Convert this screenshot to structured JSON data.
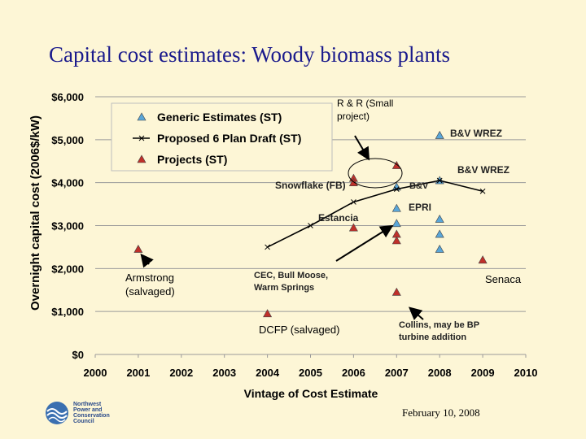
{
  "slide": {
    "title": "Capital cost estimates: Woody biomass plants",
    "date": "February 10, 2008",
    "logo_text": [
      "Northwest",
      "Power and",
      "Conservation",
      "Council"
    ]
  },
  "chart_data": {
    "type": "scatter",
    "xlabel": "Vintage of Cost Estimate",
    "ylabel": "Overnight capital cost (2006$/kW)",
    "xlim": [
      2000,
      2010
    ],
    "ylim": [
      0,
      6000
    ],
    "x_ticks": [
      "2000",
      "2001",
      "2002",
      "2003",
      "2004",
      "2005",
      "2006",
      "2007",
      "2008",
      "2009",
      "2010"
    ],
    "y_ticks": [
      "$0",
      "$1,000",
      "$2,000",
      "$3,000",
      "$4,000",
      "$5,000",
      "$6,000"
    ],
    "y_tick_values": [
      0,
      1000,
      2000,
      3000,
      4000,
      5000,
      6000
    ],
    "grid": "horizontal",
    "legend_position": "top-left",
    "series": [
      {
        "name": "Generic Estimates (ST)",
        "marker": "triangle",
        "color": "#5aa6d8",
        "points": [
          {
            "x": 2007,
            "y": 3900
          },
          {
            "x": 2007,
            "y": 3400
          },
          {
            "x": 2007,
            "y": 3050
          },
          {
            "x": 2008,
            "y": 5100
          },
          {
            "x": 2008,
            "y": 4050
          },
          {
            "x": 2008,
            "y": 3150
          },
          {
            "x": 2008,
            "y": 2800
          },
          {
            "x": 2008,
            "y": 2450
          }
        ]
      },
      {
        "name": "Proposed 6 Plan Draft (ST)",
        "marker": "x-line",
        "color": "#000000",
        "points": [
          {
            "x": 2004,
            "y": 2500
          },
          {
            "x": 2005,
            "y": 3000
          },
          {
            "x": 2006,
            "y": 3550
          },
          {
            "x": 2007,
            "y": 3850
          },
          {
            "x": 2008,
            "y": 4050
          },
          {
            "x": 2009,
            "y": 3800
          }
        ]
      },
      {
        "name": "Projects (ST)",
        "marker": "triangle",
        "color": "#c0302a",
        "points": [
          {
            "x": 2001,
            "y": 2450
          },
          {
            "x": 2004,
            "y": 950
          },
          {
            "x": 2006,
            "y": 4100
          },
          {
            "x": 2006,
            "y": 4000
          },
          {
            "x": 2006,
            "y": 2950
          },
          {
            "x": 2007,
            "y": 4400
          },
          {
            "x": 2007,
            "y": 2800
          },
          {
            "x": 2007,
            "y": 2650
          },
          {
            "x": 2007,
            "y": 1450
          },
          {
            "x": 2009,
            "y": 2200
          }
        ]
      }
    ],
    "annotations": [
      {
        "text": "R & R (Small",
        "text2": "project)",
        "style": "plain"
      },
      {
        "text": "B&V WREZ",
        "style": "bold"
      },
      {
        "text": "B&V WREZ",
        "style": "bold"
      },
      {
        "text": "Snowflake (FB)",
        "style": "bold"
      },
      {
        "text": "B&V",
        "style": "bold"
      },
      {
        "text": "EPRI",
        "style": "bold"
      },
      {
        "text": "Estancia",
        "style": "bold"
      },
      {
        "text": "Armstrong",
        "text2": "(salvaged)",
        "style": "plain"
      },
      {
        "text": "CEC, Bull Moose,",
        "text2": "Warm Springs",
        "style": "bold"
      },
      {
        "text": "Senaca",
        "style": "plain"
      },
      {
        "text": "DCFP (salvaged)",
        "style": "plain"
      },
      {
        "text": "Collins, may be BP",
        "text2": "turbine addition",
        "style": "bold"
      }
    ]
  }
}
